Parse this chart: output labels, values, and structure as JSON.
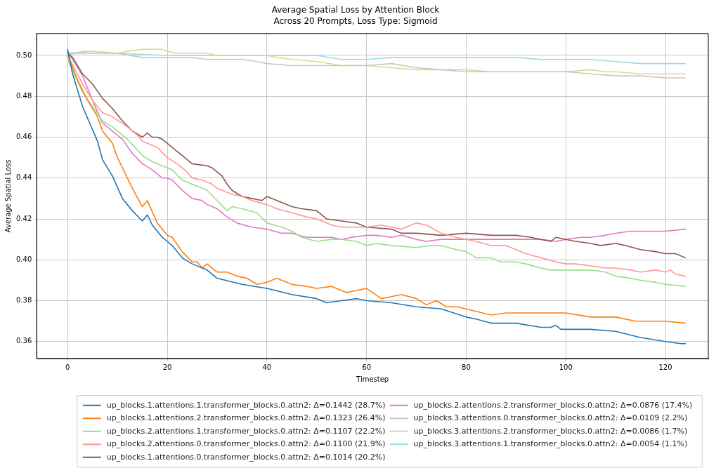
{
  "chart_data": {
    "type": "line",
    "title": "Average Spatial Loss by Attention Block",
    "subtitle": "Across 20 Prompts, Loss Type: Sigmoid",
    "xlabel": "Timestep",
    "ylabel": "Average Spatial Loss",
    "xlim": [
      -6.2,
      128.6
    ],
    "xticks": [
      0,
      20,
      40,
      60,
      80,
      100,
      120
    ],
    "ylim": [
      0.3517,
      0.5107
    ],
    "yticks": [
      0.36,
      0.38,
      {
        "value": 0.4,
        "label": "0.40"
      },
      0.42,
      0.44,
      0.46,
      0.48,
      {
        "value": 0.5,
        "label": "0.50"
      }
    ],
    "grid": true,
    "legend": "bottom",
    "marker": "none",
    "line_style": "solid",
    "series": [
      {
        "name": "up_blocks.1.attentions.1.transformer_blocks.0.attn2: Δ=0.1442 (28.7%)",
        "color": "#1f77b4",
        "x": [
          0,
          1,
          3,
          6,
          7,
          9,
          11,
          13,
          15,
          16,
          17,
          19,
          21,
          23,
          25,
          28,
          30,
          35,
          40,
          45,
          50,
          52,
          55,
          58,
          60,
          65,
          70,
          75,
          80,
          82,
          85,
          90,
          95,
          97,
          98,
          99,
          100,
          105,
          110,
          115,
          120,
          123,
          124
        ],
        "values": [
          0.503,
          0.491,
          0.475,
          0.458,
          0.449,
          0.441,
          0.43,
          0.424,
          0.419,
          0.422,
          0.417,
          0.411,
          0.407,
          0.401,
          0.398,
          0.395,
          0.391,
          0.388,
          0.386,
          0.383,
          0.381,
          0.379,
          0.38,
          0.381,
          0.38,
          0.379,
          0.377,
          0.376,
          0.372,
          0.371,
          0.369,
          0.369,
          0.367,
          0.367,
          0.368,
          0.366,
          0.366,
          0.366,
          0.365,
          0.362,
          0.36,
          0.359,
          0.359
        ]
      },
      {
        "name": "up_blocks.1.attentions.2.transformer_blocks.0.attn2: Δ=0.1323 (26.4%)",
        "color": "#ff7f0e",
        "x": [
          0,
          2,
          4,
          6,
          7,
          9,
          10,
          13,
          15,
          16,
          18,
          20,
          21,
          23,
          25,
          26,
          27,
          28,
          30,
          32,
          34,
          36,
          38,
          40,
          42,
          45,
          48,
          50,
          53,
          56,
          58,
          60,
          63,
          65,
          67,
          70,
          72,
          74,
          76,
          78,
          80,
          85,
          88,
          90,
          95,
          100,
          105,
          110,
          114,
          120,
          124
        ],
        "values": [
          0.5,
          0.488,
          0.478,
          0.47,
          0.463,
          0.457,
          0.45,
          0.435,
          0.426,
          0.429,
          0.418,
          0.412,
          0.411,
          0.404,
          0.399,
          0.399,
          0.396,
          0.398,
          0.394,
          0.394,
          0.392,
          0.391,
          0.388,
          0.389,
          0.391,
          0.388,
          0.387,
          0.386,
          0.387,
          0.384,
          0.385,
          0.386,
          0.381,
          0.382,
          0.383,
          0.381,
          0.378,
          0.38,
          0.377,
          0.377,
          0.376,
          0.373,
          0.374,
          0.374,
          0.374,
          0.374,
          0.372,
          0.372,
          0.37,
          0.37,
          0.369
        ]
      },
      {
        "name": "up_blocks.2.attentions.1.transformer_blocks.0.attn2: Δ=0.1107 (22.2%)",
        "color": "#98df8a",
        "x": [
          0,
          3,
          5,
          7,
          9,
          12,
          15,
          17,
          20,
          21,
          23,
          25,
          28,
          30,
          32,
          33,
          35,
          38,
          40,
          43,
          45,
          47,
          50,
          53,
          55,
          58,
          60,
          62,
          65,
          70,
          73,
          75,
          78,
          80,
          82,
          85,
          87,
          90,
          92,
          95,
          97,
          100,
          105,
          108,
          110,
          113,
          115,
          118,
          120,
          124
        ],
        "values": [
          0.498,
          0.482,
          0.475,
          0.468,
          0.465,
          0.459,
          0.451,
          0.448,
          0.445,
          0.444,
          0.439,
          0.437,
          0.434,
          0.429,
          0.424,
          0.426,
          0.425,
          0.423,
          0.418,
          0.416,
          0.414,
          0.411,
          0.409,
          0.41,
          0.41,
          0.409,
          0.407,
          0.408,
          0.407,
          0.406,
          0.407,
          0.407,
          0.405,
          0.404,
          0.401,
          0.401,
          0.399,
          0.399,
          0.398,
          0.396,
          0.395,
          0.395,
          0.395,
          0.394,
          0.392,
          0.391,
          0.39,
          0.389,
          0.388,
          0.387
        ]
      },
      {
        "name": "up_blocks.2.attentions.0.transformer_blocks.0.attn2: Δ=0.1100 (21.9%)",
        "color": "#ff9896",
        "x": [
          0,
          3,
          5,
          7,
          9,
          12,
          14,
          15,
          18,
          20,
          22,
          24,
          25,
          27,
          28,
          29,
          30,
          33,
          35,
          37,
          40,
          42,
          45,
          48,
          50,
          53,
          55,
          60,
          63,
          65,
          67,
          70,
          72,
          75,
          78,
          80,
          82,
          85,
          88,
          90,
          92,
          95,
          98,
          100,
          102,
          105,
          108,
          110,
          113,
          115,
          118,
          120,
          121,
          122,
          124
        ],
        "values": [
          0.5,
          0.486,
          0.478,
          0.472,
          0.47,
          0.465,
          0.461,
          0.458,
          0.455,
          0.45,
          0.447,
          0.443,
          0.44,
          0.439,
          0.438,
          0.437,
          0.435,
          0.432,
          0.431,
          0.429,
          0.427,
          0.425,
          0.423,
          0.421,
          0.42,
          0.417,
          0.416,
          0.416,
          0.417,
          0.416,
          0.415,
          0.418,
          0.417,
          0.413,
          0.411,
          0.41,
          0.409,
          0.407,
          0.407,
          0.405,
          0.403,
          0.401,
          0.399,
          0.398,
          0.398,
          0.397,
          0.396,
          0.396,
          0.395,
          0.394,
          0.395,
          0.394,
          0.395,
          0.393,
          0.392
        ]
      },
      {
        "name": "up_blocks.1.attentions.0.transformer_blocks.0.attn2: Δ=0.1014 (20.2%)",
        "color": "#8c564b",
        "x": [
          0,
          1,
          3,
          5,
          7,
          9,
          11,
          13,
          15,
          16,
          17,
          18,
          19,
          21,
          23,
          25,
          28,
          29,
          31,
          32,
          33,
          35,
          37,
          39,
          40,
          42,
          45,
          47,
          50,
          52,
          55,
          58,
          60,
          65,
          67,
          70,
          75,
          80,
          85,
          90,
          93,
          95,
          97,
          98,
          100,
          102,
          105,
          107,
          110,
          112,
          115,
          118,
          120,
          122,
          124
        ],
        "values": [
          0.501,
          0.499,
          0.491,
          0.486,
          0.479,
          0.474,
          0.468,
          0.463,
          0.46,
          0.462,
          0.46,
          0.46,
          0.459,
          0.455,
          0.451,
          0.447,
          0.446,
          0.445,
          0.441,
          0.437,
          0.434,
          0.431,
          0.43,
          0.429,
          0.431,
          0.429,
          0.426,
          0.425,
          0.424,
          0.42,
          0.419,
          0.418,
          0.416,
          0.415,
          0.413,
          0.413,
          0.412,
          0.413,
          0.412,
          0.412,
          0.411,
          0.41,
          0.409,
          0.411,
          0.41,
          0.409,
          0.408,
          0.407,
          0.408,
          0.407,
          0.405,
          0.404,
          0.403,
          0.403,
          0.401
        ]
      },
      {
        "name": "up_blocks.2.attentions.2.transformer_blocks.0.attn2: Δ=0.0876 (17.4%)",
        "color": "#e377c2",
        "x": [
          0,
          3,
          5,
          7,
          9,
          11,
          13,
          15,
          17,
          19,
          20,
          21,
          23,
          25,
          27,
          28,
          30,
          32,
          34,
          37,
          40,
          43,
          45,
          48,
          50,
          53,
          55,
          57,
          60,
          62,
          65,
          67,
          70,
          72,
          75,
          78,
          80,
          85,
          90,
          95,
          98,
          100,
          103,
          105,
          108,
          110,
          113,
          115,
          120,
          124
        ],
        "values": [
          0.502,
          0.49,
          0.478,
          0.467,
          0.463,
          0.459,
          0.452,
          0.447,
          0.444,
          0.44,
          0.44,
          0.439,
          0.434,
          0.43,
          0.429,
          0.427,
          0.425,
          0.421,
          0.418,
          0.416,
          0.415,
          0.413,
          0.413,
          0.411,
          0.411,
          0.411,
          0.41,
          0.411,
          0.412,
          0.412,
          0.411,
          0.412,
          0.41,
          0.409,
          0.41,
          0.41,
          0.41,
          0.41,
          0.41,
          0.41,
          0.409,
          0.41,
          0.411,
          0.411,
          0.412,
          0.413,
          0.414,
          0.414,
          0.414,
          0.415
        ]
      },
      {
        "name": "up_blocks.3.attentions.0.transformer_blocks.0.attn2: Δ=0.0109 (2.2%)",
        "color": "#c7c7c7",
        "x": [
          0,
          5,
          10,
          15,
          20,
          25,
          28,
          30,
          35,
          38,
          40,
          45,
          50,
          55,
          60,
          65,
          70,
          75,
          80,
          85,
          90,
          95,
          100,
          105,
          110,
          115,
          120,
          124
        ],
        "values": [
          0.501,
          0.501,
          0.501,
          0.499,
          0.499,
          0.499,
          0.498,
          0.498,
          0.498,
          0.497,
          0.496,
          0.495,
          0.495,
          0.495,
          0.495,
          0.496,
          0.494,
          0.493,
          0.492,
          0.492,
          0.492,
          0.492,
          0.492,
          0.491,
          0.49,
          0.49,
          0.489,
          0.489
        ]
      },
      {
        "name": "up_blocks.3.attentions.2.transformer_blocks.0.attn2: Δ=0.0086 (1.7%)",
        "color": "#dbdb8d",
        "x": [
          0,
          3,
          5,
          10,
          12,
          15,
          17,
          19,
          20,
          22,
          25,
          28,
          30,
          35,
          38,
          40,
          42,
          45,
          50,
          55,
          60,
          65,
          70,
          75,
          80,
          85,
          90,
          95,
          100,
          105,
          108,
          110,
          115,
          120,
          124
        ],
        "values": [
          0.5,
          0.502,
          0.502,
          0.501,
          0.502,
          0.503,
          0.503,
          0.503,
          0.502,
          0.501,
          0.501,
          0.501,
          0.5,
          0.5,
          0.5,
          0.5,
          0.499,
          0.498,
          0.497,
          0.495,
          0.495,
          0.494,
          0.493,
          0.493,
          0.493,
          0.492,
          0.492,
          0.492,
          0.492,
          0.493,
          0.492,
          0.492,
          0.491,
          0.491,
          0.491
        ]
      },
      {
        "name": "up_blocks.3.attentions.1.transformer_blocks.0.attn2: Δ=0.0054 (1.1%)",
        "color": "#9edae5",
        "x": [
          0,
          5,
          10,
          20,
          30,
          40,
          45,
          50,
          55,
          60,
          65,
          70,
          75,
          80,
          85,
          90,
          95,
          100,
          105,
          110,
          115,
          120,
          124
        ],
        "values": [
          0.501,
          0.502,
          0.501,
          0.5,
          0.5,
          0.5,
          0.5,
          0.5,
          0.498,
          0.498,
          0.499,
          0.499,
          0.499,
          0.499,
          0.499,
          0.499,
          0.498,
          0.498,
          0.498,
          0.497,
          0.496,
          0.496,
          0.496
        ]
      }
    ]
  }
}
